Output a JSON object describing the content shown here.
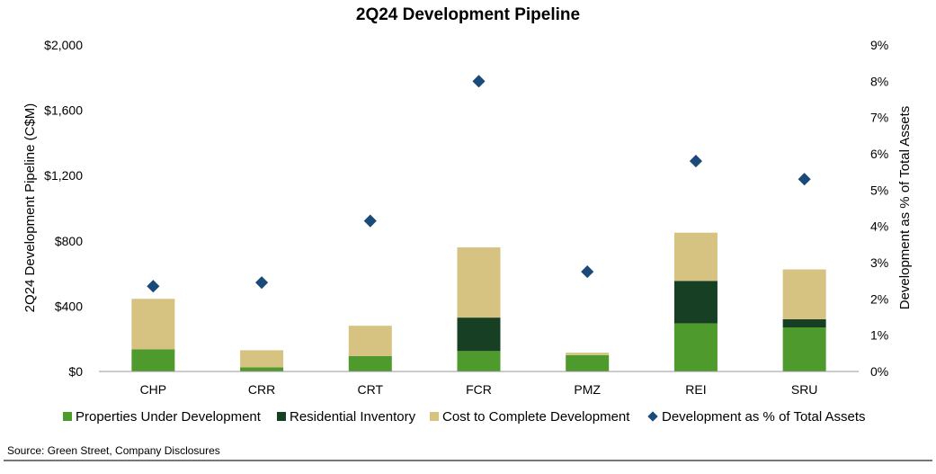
{
  "chart_data": {
    "type": "bar",
    "title": "2Q24 Development Pipeline",
    "categories": [
      "CHP",
      "CRR",
      "CRT",
      "FCR",
      "PMZ",
      "REI",
      "SRU"
    ],
    "series": [
      {
        "name": "Properties Under Development",
        "values": [
          135,
          25,
          95,
          125,
          100,
          295,
          270
        ],
        "color": "#4f9a2c"
      },
      {
        "name": "Residential Inventory",
        "values": [
          0,
          0,
          0,
          205,
          0,
          260,
          50
        ],
        "color": "#163f24"
      },
      {
        "name": "Cost to Complete Development",
        "values": [
          310,
          105,
          185,
          430,
          15,
          295,
          305
        ],
        "color": "#d6c382"
      }
    ],
    "line_series": {
      "name": "Development as % of Total Assets",
      "values": [
        2.35,
        2.45,
        4.15,
        8.0,
        2.75,
        5.8,
        5.3
      ],
      "color": "#1a4a7a"
    },
    "ylabel": "2Q24 Development Pipeline (C$M)",
    "y2label": "Development as % of Total Assets",
    "ylim": [
      0,
      2000
    ],
    "y2lim": [
      0,
      9
    ],
    "yticks": [
      "$0",
      "$400",
      "$800",
      "$1,200",
      "$1,600",
      "$2,000"
    ],
    "y2ticks": [
      "0%",
      "1%",
      "2%",
      "3%",
      "4%",
      "5%",
      "6%",
      "7%",
      "8%",
      "9%"
    ],
    "stacked": true,
    "grid": false,
    "legend_position": "bottom"
  },
  "source": "Source: Green Street, Company Disclosures"
}
